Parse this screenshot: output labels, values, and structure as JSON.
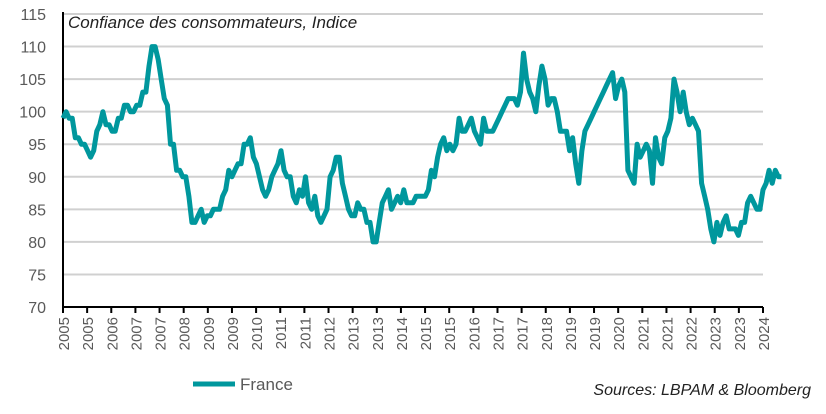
{
  "chart_data": {
    "type": "line",
    "title": "Confiance des consommateurs, Indice",
    "source": "Sources: LBPAM & Bloomberg",
    "xlabel": "",
    "ylabel": "",
    "ylim": [
      70,
      115
    ],
    "yticks": [
      70,
      75,
      80,
      85,
      90,
      95,
      100,
      105,
      110,
      115
    ],
    "xtick_labels": [
      "2005",
      "2005",
      "2006",
      "2007",
      "2007",
      "2008",
      "2009",
      "2009",
      "2010",
      "2011",
      "2011",
      "2012",
      "2013",
      "2013",
      "2014",
      "2015",
      "2015",
      "2016",
      "2017",
      "2017",
      "2018",
      "2019",
      "2019",
      "2020",
      "2021",
      "2021",
      "2022",
      "2023",
      "2023",
      "2024"
    ],
    "grid": "horizontal",
    "legend_position": "bottom-left",
    "colors": {
      "series": "#00979D",
      "grid": "#d0d0d0",
      "axis": "#000000"
    },
    "series": [
      {
        "name": "France",
        "frequency": "monthly",
        "values_by_year": {
          "2005": [
            99,
            100,
            99,
            99,
            96,
            96,
            95,
            95,
            94,
            93,
            94,
            97
          ],
          "2006": [
            98,
            100,
            98,
            98,
            97,
            97,
            99,
            99,
            101,
            101,
            100,
            100
          ],
          "2007": [
            101,
            101,
            103,
            103,
            107,
            110,
            110,
            108,
            105,
            102,
            101,
            95
          ],
          "2008": [
            95,
            91,
            91,
            90,
            90,
            87,
            83,
            83,
            84,
            85,
            83,
            84
          ],
          "2009": [
            84,
            85,
            85,
            85,
            87,
            88,
            91,
            90,
            91,
            92,
            92,
            95
          ],
          "2010": [
            95,
            96,
            93,
            92,
            90,
            88,
            87,
            88,
            90,
            91,
            92,
            94
          ],
          "2011": [
            91,
            90,
            90,
            87,
            86,
            88,
            87,
            90,
            86,
            85,
            87,
            84
          ],
          "2012": [
            83,
            84,
            85,
            90,
            91,
            93,
            93,
            89,
            87,
            85,
            84,
            84
          ],
          "2013": [
            86,
            85,
            85,
            83,
            83,
            80,
            80,
            83,
            86,
            87,
            88,
            85
          ],
          "2014": [
            86,
            87,
            86,
            88,
            86,
            86,
            86,
            87,
            87,
            87,
            87,
            88
          ],
          "2015": [
            91,
            90,
            93,
            95,
            96,
            94,
            95,
            94,
            95,
            99,
            97,
            97
          ],
          "2016": [
            98,
            99,
            97,
            96,
            95,
            99,
            97,
            97,
            97,
            98,
            99,
            100
          ],
          "2017": [
            101,
            102,
            102,
            102,
            101,
            103,
            109,
            105,
            103,
            102,
            100,
            104
          ],
          "2018": [
            107,
            105,
            101,
            102,
            102,
            100,
            97,
            97,
            97,
            94,
            96,
            92
          ],
          "2019": [
            89,
            94,
            97,
            98,
            99,
            100,
            101,
            102,
            103,
            104,
            105,
            106
          ],
          "2020": [
            102,
            104,
            105,
            103,
            91,
            90,
            89,
            95,
            93,
            94,
            95,
            94
          ],
          "2021": [
            89,
            96,
            93,
            92,
            96,
            97,
            99,
            105,
            103,
            100,
            103,
            100
          ],
          "2022": [
            98,
            99,
            98,
            97,
            89,
            87,
            85,
            82,
            80,
            83,
            81,
            83
          ],
          "2023": [
            84,
            82,
            82,
            82,
            81,
            83,
            83,
            86,
            87,
            86,
            85,
            85
          ],
          "2024": [
            88,
            89,
            91,
            89,
            91,
            90,
            90
          ]
        }
      }
    ]
  }
}
